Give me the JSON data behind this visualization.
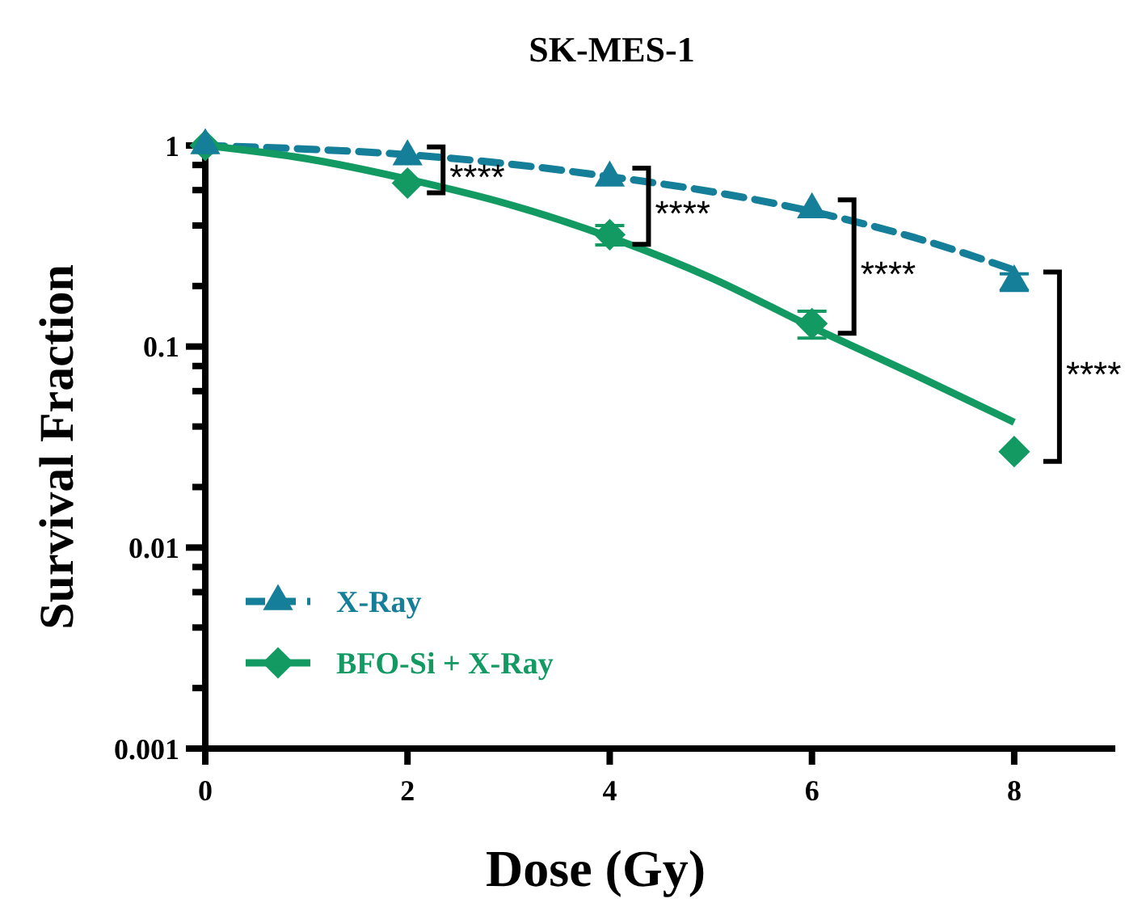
{
  "chart_data": {
    "type": "scatter",
    "title": "SK-MES-1",
    "xlabel": "Dose (Gy)",
    "ylabel": "Survival Fraction",
    "log": "y",
    "xlim": [
      0,
      9
    ],
    "xticks": [
      0,
      2,
      4,
      6,
      8
    ],
    "ylim": [
      0.001,
      1
    ],
    "yticks": [
      1,
      {
        "value": 0.8,
        "label": null
      },
      {
        "value": 0.6,
        "label": null
      },
      {
        "value": 0.4,
        "label": null
      },
      {
        "value": 0.2,
        "label": null
      },
      0.1,
      {
        "value": 0.08,
        "label": null
      },
      {
        "value": 0.06,
        "label": null
      },
      {
        "value": 0.04,
        "label": null
      },
      {
        "value": 0.02,
        "label": null
      },
      0.01,
      {
        "value": 0.008,
        "label": null
      },
      {
        "value": 0.006,
        "label": null
      },
      {
        "value": 0.004,
        "label": null
      },
      {
        "value": 0.002,
        "label": null
      },
      0.001
    ],
    "legend": "bottom left",
    "grid": false,
    "series": [
      {
        "name": "X-Ray",
        "marker": "triangle",
        "color": "#157f99",
        "x": [
          0,
          2,
          4,
          6,
          8
        ],
        "values": [
          1,
          0.88,
          0.69,
          0.48,
          0.21
        ],
        "errors": [
          null,
          null,
          null,
          null,
          0.02
        ]
      },
      {
        "name": "BFO-Si + X-Ray",
        "marker": "diamond",
        "color": "#139a63",
        "x": [
          0,
          2,
          4,
          6,
          8
        ],
        "values": [
          1,
          0.65,
          0.36,
          0.13,
          0.03
        ],
        "errors": [
          null,
          null,
          0.04,
          0.02,
          null
        ]
      },
      {
        "type": "line",
        "line_style": "dashed",
        "color": "#157f99",
        "x": [
          0,
          1,
          2,
          3,
          4,
          5,
          6,
          7,
          8
        ],
        "values": [
          1,
          0.96,
          0.9,
          0.81,
          0.7,
          0.59,
          0.47,
          0.35,
          0.24
        ]
      },
      {
        "type": "line",
        "line_style": "solid",
        "color": "#139a63",
        "x": [
          0,
          1,
          2,
          3,
          4,
          5,
          6,
          7,
          8
        ],
        "values": [
          1,
          0.86,
          0.68,
          0.51,
          0.35,
          0.22,
          0.125,
          0.073,
          0.042
        ]
      }
    ],
    "annotations": [
      "****",
      "****",
      "****",
      "****"
    ]
  }
}
